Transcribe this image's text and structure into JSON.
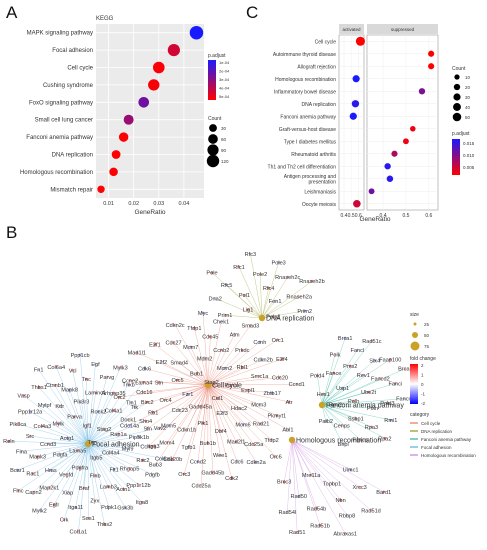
{
  "panels": {
    "a": "A",
    "b": "B",
    "c": "C"
  },
  "panel_a": {
    "chart_data": {
      "type": "scatter",
      "title": "KEGG",
      "xlabel": "GeneRatio",
      "ylabel": "",
      "xlim": [
        0.005,
        0.048
      ],
      "xticks": [
        "0.01",
        "0.02",
        "0.03",
        "0.04"
      ],
      "xtick_values": [
        0.01,
        0.02,
        0.03,
        0.04
      ],
      "categories": [
        "MAPK signaling pathway",
        "Focal adhesion",
        "Cell cycle",
        "Cushing syndrome",
        "FoxO signaling pathway",
        "Small cell lung cancer",
        "Fanconi anemia pathway",
        "DNA replication",
        "Homologous recombination",
        "Mismatch repair"
      ],
      "series": [
        {
          "x": [
            0.045,
            0.036,
            0.03,
            0.028,
            0.024,
            0.018,
            0.016,
            0.013,
            0.012,
            0.007
          ],
          "count": [
            150,
            115,
            100,
            95,
            78,
            65,
            55,
            45,
            40,
            25
          ],
          "p_adjust": [
            0.00055,
            0.00012,
            2e-05,
            3e-05,
            0.00035,
            0.00025,
            1e-05,
            1e-05,
            1.2e-05,
            1.5e-05
          ]
        }
      ],
      "legend": {
        "p_adjust_title": "p.adjust",
        "p_adjust_ticks": [
          "1e-04",
          "2e-04",
          "3e-04",
          "4e-04",
          "5e-04"
        ],
        "count_title": "Count",
        "count_ticks": [
          "30",
          "60",
          "90",
          "120"
        ]
      },
      "colors": {
        "low": "#ff0000",
        "high": "#1a1aff"
      }
    }
  },
  "panel_c": {
    "chart_data": {
      "type": "scatter",
      "xlabel": "GeneRatio",
      "facets": [
        {
          "name": "activated",
          "xlim": [
            0.33,
            0.68
          ],
          "xticks": [
            "0.4",
            "0.5",
            "0.6"
          ],
          "xtick_values": [
            0.4,
            0.5,
            0.6
          ]
        },
        {
          "name": "suppressed",
          "xlim": [
            0.33,
            0.64
          ],
          "xticks": [
            "0.4",
            "0.5",
            "0.6"
          ],
          "xtick_values": [
            0.4,
            0.5,
            0.6
          ]
        }
      ],
      "categories": [
        "Cell cycle",
        "Autoimmune thyroid disease",
        "Allograft rejection",
        "Homologous recombination",
        "Inflammatory bowel disease",
        "DNA replication",
        "Fanconi anemia pathway",
        "Graft-versus-host disease",
        "Type I diabetes mellitus",
        "Rheumatoid arthritis",
        "Th1 and Th2 cell differentiation",
        "Antigen processing and presentation",
        "Leishmaniasis",
        "Oocyte meiosis"
      ],
      "series": [
        {
          "name": "activated",
          "points": [
            {
              "category": "Cell cycle",
              "x": 0.63,
              "count": 60,
              "p_adjust": 0.001
            },
            {
              "category": "Homologous recombination",
              "x": 0.57,
              "count": 30,
              "p_adjust": 0.015
            },
            {
              "category": "DNA replication",
              "x": 0.56,
              "count": 32,
              "p_adjust": 0.014
            },
            {
              "category": "Fanconi anemia pathway",
              "x": 0.53,
              "count": 30,
              "p_adjust": 0.015
            },
            {
              "category": "Oocyte meiosis",
              "x": 0.58,
              "count": 35,
              "p_adjust": 0.004
            }
          ]
        },
        {
          "name": "suppressed",
          "points": [
            {
              "category": "Autoimmune thyroid disease",
              "x": 0.61,
              "count": 18,
              "p_adjust": 0.001
            },
            {
              "category": "Allograft rejection",
              "x": 0.61,
              "count": 18,
              "p_adjust": 0.001
            },
            {
              "category": "Inflammatory bowel disease",
              "x": 0.57,
              "count": 20,
              "p_adjust": 0.009
            },
            {
              "category": "Graft-versus-host disease",
              "x": 0.53,
              "count": 12,
              "p_adjust": 0.002
            },
            {
              "category": "Type I diabetes mellitus",
              "x": 0.5,
              "count": 15,
              "p_adjust": 0.002
            },
            {
              "category": "Rheumatoid arthritis",
              "x": 0.45,
              "count": 18,
              "p_adjust": 0.006
            },
            {
              "category": "Th1 and Th2 cell differentiation",
              "x": 0.42,
              "count": 20,
              "p_adjust": 0.014
            },
            {
              "category": "Antigen processing and presentation",
              "x": 0.43,
              "count": 22,
              "p_adjust": 0.014
            },
            {
              "category": "Leishmaniasis",
              "x": 0.35,
              "count": 15,
              "p_adjust": 0.01
            }
          ]
        }
      ],
      "legend": {
        "count_title": "Count",
        "count_ticks": [
          "10",
          "20",
          "30",
          "40",
          "50"
        ],
        "p_adjust_title": "p.adjust",
        "p_adjust_ticks": [
          "0.015",
          "0.010",
          "0.005"
        ]
      }
    }
  },
  "panel_b": {
    "hubs": [
      {
        "name": "DNA replication",
        "color": "#8a9a1a"
      },
      {
        "name": "Cell cycle",
        "color": "#e8735f"
      },
      {
        "name": "Fanconi anemia pathway",
        "color": "#2bb39c"
      },
      {
        "name": "Focal adhesion",
        "color": "#5aaee0"
      },
      {
        "name": "Homologous recombination",
        "color": "#c77be0"
      }
    ],
    "genes": {
      "dna": [
        "Rfc4",
        "Pol1",
        "Pole2",
        "Fen1",
        "Rfc5",
        "Rnaseh2c",
        "Lig1",
        "Rfc1",
        "Rnaseh2a",
        "Dna2",
        "Pole3",
        "Polа2",
        "Pole",
        "Rnaseh2b",
        "Prim1",
        "Rfc3",
        "Prim2"
      ],
      "cellcycle": [
        "Cul1",
        "Gadd45a",
        "Stag2",
        "E2f3",
        "Fzr1",
        "Pcna",
        "Plk1",
        "Bub1",
        "Hdac2",
        "Cdc23",
        "Mcm2",
        "Dbf4",
        "Orc5",
        "Espl1",
        "Cdkn1b",
        "Mdm2",
        "Mcm6",
        "Orc4",
        "Rbl1",
        "Bub1b",
        "Smad4",
        "Mcm3",
        "Mcm5",
        "Ccnb2",
        "Mad2l1",
        "Stn",
        "Smc1a",
        "Tgfb1",
        "Mcm7",
        "Rad21",
        "Rb1",
        "Prkdc",
        "Wee1",
        "E2f2",
        "Zbtb17",
        "Mcm4",
        "Cdc45",
        "Cdc25a",
        "Cdc16",
        "Cdkn2b",
        "Ccnd2",
        "Cdc27",
        "Pkmyt1",
        "Sfn",
        "Atm",
        "Cdc6",
        "Cdk6",
        "Cdc20",
        "Cdc20b",
        "Tfdp1",
        "Tfdp2",
        "Ttk",
        "Ccnh",
        "Gadd45b",
        "E2f1",
        "Atr",
        "Ccne1",
        "Chek1",
        "Cdkn2a",
        "Ccne2",
        "E2f4",
        "Orc3",
        "Cdkn2c",
        "Abl1",
        "Cdc14a",
        "Smad3",
        "Cdk2",
        "Mad1l1",
        "Ccnd1",
        "Bub3",
        "Myc",
        "Orc6",
        "Orc2",
        "Orc1",
        "Cdc25a"
      ],
      "focal": [
        "Tnn",
        "Lama5",
        "Igf1",
        "Itgb5",
        "Actg1",
        "Stag2",
        "Pdgfra",
        "Parva",
        "Col4a4",
        "Pdgfa",
        "Rock2",
        "Flnb",
        "Mylk",
        "Rap1a",
        "Vegfd",
        "Pik3r3",
        "Flt1",
        "Ccnd3",
        "Col4a1",
        "Braf",
        "Kdr",
        "Myl9",
        "Hras",
        "Laminc1",
        "Lamb3",
        "Col4a3",
        "Dock1",
        "Xiap",
        "Mapk8",
        "Rhgap5",
        "Mapk3",
        "Arhgap35",
        "Zyx",
        "Mylpf",
        "Pip5k1b",
        "Map2k1",
        "Tnc",
        "Actn1",
        "Src",
        "Tln1",
        "Itga11",
        "Ctnnb1",
        "Rac2",
        "Rac1",
        "Parvg",
        "Pdpk1",
        "Ppp1r12a",
        "Sho4",
        "Egfr",
        "Vcl",
        "Ppp1r12b",
        "Fina",
        "Tnxb",
        "Sos1",
        "Thbs1",
        "Itga3",
        "Capn2",
        "Egf",
        "Gsk3b",
        "Pik3ca",
        "Birc2",
        "Crk",
        "Col6a4",
        "Pdgfb",
        "Bcar1",
        "Mylk3",
        "Thbs2",
        "Vasp",
        "Vav2",
        "Mylk2",
        "Ppp1cb",
        "Itga8",
        "Reln",
        "Lama4",
        "Col1a1",
        "Fn1",
        "Col6a1",
        "Flnc"
      ],
      "fanconi": [
        "Ube2t",
        "Polh",
        "Rev1",
        "Poln",
        "Usp1",
        "Fancd2",
        "Ssbp1",
        "Pms2",
        "Pold3",
        "Rmi2",
        "Slx4",
        "Rpa3",
        "Fance",
        "Fanci",
        "Cenps",
        "Fancl",
        "Rmi1",
        "Hes1",
        "Faap100",
        "Fanca",
        "Polk",
        "Fancm",
        "Palb2",
        "Rad51c",
        "Rpa2",
        "Pold4",
        "Brca2",
        "Bripl",
        "Brca1"
      ],
      "hr": [
        "Nbn",
        "Rad54b",
        "Topbp1",
        "Rbbp8",
        "Rad50",
        "Xrcc3",
        "Rad51b",
        "Mre11a",
        "Rad51d",
        "Rad54l",
        "Uimc1",
        "Abraxas1",
        "Brcc3",
        "Bard1",
        "Rad51"
      ]
    },
    "legend": {
      "size_title": "size",
      "size_ticks": [
        "25",
        "50",
        "75"
      ],
      "fc_title": "fold change",
      "fc_ticks": [
        "2",
        "1",
        "0",
        "-1",
        "-2"
      ],
      "category_title": "category",
      "categories": [
        "Cell cycle",
        "DNA replication",
        "Fanconi anemia pathway",
        "Focal adhesion",
        "Homologous recombination"
      ],
      "category_colors": [
        "#e8735f",
        "#8a9a1a",
        "#2bb39c",
        "#5aaee0",
        "#c77be0"
      ]
    }
  }
}
